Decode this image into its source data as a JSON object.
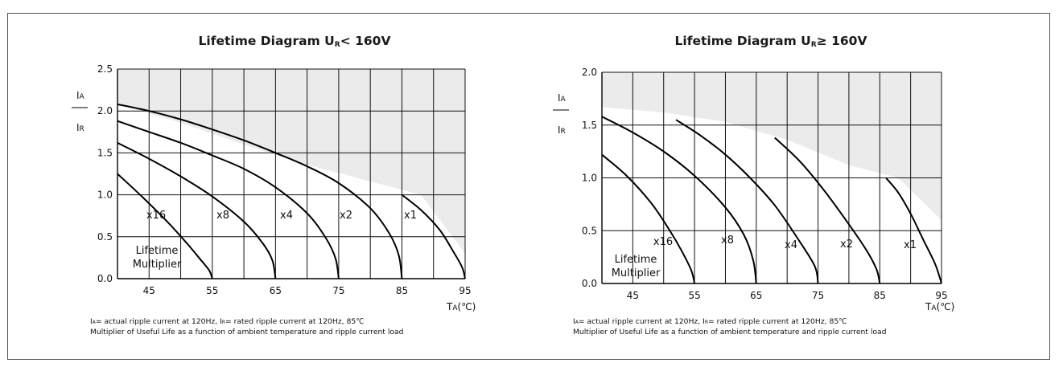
{
  "chart_data": [
    {
      "type": "line",
      "title": "Lifetime Diagram",
      "title_sub": "R",
      "title_tail": "< 160V",
      "title_var": "U",
      "ylabel_num": "I",
      "ylabel_num_sub": "A",
      "ylabel_den": "I",
      "ylabel_den_sub": "R",
      "xlabel": "T",
      "xlabel_sub": "A",
      "xlabel_unit": "(℃)",
      "xlim": [
        40,
        95
      ],
      "ylim": [
        0,
        2.5
      ],
      "yticks": [
        "0.0",
        "0.5",
        "1.0",
        "1.5",
        "2.0",
        "2.5"
      ],
      "xticks": [
        "45",
        "55",
        "65",
        "75",
        "85",
        "95"
      ],
      "grid": true,
      "series": [
        {
          "name": "x16",
          "x": [
            40,
            44,
            48,
            51,
            53,
            54.5,
            55
          ],
          "y": [
            1.25,
            0.97,
            0.67,
            0.42,
            0.24,
            0.1,
            0.0
          ]
        },
        {
          "name": "x8",
          "x": [
            40,
            45,
            50,
            55,
            60,
            63,
            64.5,
            65
          ],
          "y": [
            1.62,
            1.43,
            1.22,
            0.98,
            0.68,
            0.42,
            0.22,
            0.0
          ]
        },
        {
          "name": "x4",
          "x": [
            40,
            45,
            50,
            55,
            60,
            65,
            70,
            73,
            74.5,
            75
          ],
          "y": [
            1.88,
            1.75,
            1.62,
            1.47,
            1.31,
            1.09,
            0.78,
            0.48,
            0.24,
            0.0
          ]
        },
        {
          "name": "x2",
          "x": [
            40,
            45,
            50,
            55,
            60,
            65,
            70,
            75,
            80,
            83,
            84.5,
            85
          ],
          "y": [
            2.08,
            2.0,
            1.9,
            1.78,
            1.65,
            1.5,
            1.34,
            1.14,
            0.84,
            0.54,
            0.28,
            0.0
          ]
        },
        {
          "name": "x1",
          "x": [
            85,
            88,
            91,
            93,
            94.5,
            95
          ],
          "y": [
            1.0,
            0.82,
            0.58,
            0.34,
            0.14,
            0.0
          ]
        }
      ],
      "annotations": [
        "x16",
        "x8",
        "x4",
        "x2",
        "x1",
        "Lifetime",
        "Multiplier"
      ],
      "caption_line1_a": "= actual ripple current at 120Hz, ",
      "caption_line1_b": "= rated ripple current at 120Hz, 85℃",
      "caption_line2": "Multiplier of Useful Life as a function of ambient temperature and ripple current load"
    },
    {
      "type": "line",
      "title": "Lifetime Diagram",
      "title_var": "U",
      "title_sub": "R",
      "title_tail": "≥ 160V",
      "ylabel_num": "I",
      "ylabel_num_sub": "A",
      "ylabel_den": "I",
      "ylabel_den_sub": "R",
      "xlabel": "T",
      "xlabel_sub": "A",
      "xlabel_unit": "(℃)",
      "xlim": [
        40,
        95
      ],
      "ylim": [
        0,
        2.0
      ],
      "yticks": [
        "0.0",
        "0.5",
        "1.0",
        "1.5",
        "2.0"
      ],
      "xticks": [
        "45",
        "55",
        "65",
        "75",
        "85",
        "95"
      ],
      "grid": true,
      "series": [
        {
          "name": "x16",
          "x": [
            40,
            44,
            48,
            51,
            53,
            54.5,
            55
          ],
          "y": [
            1.22,
            1.02,
            0.76,
            0.5,
            0.3,
            0.12,
            0.0
          ]
        },
        {
          "name": "x8",
          "x": [
            40,
            45,
            50,
            55,
            60,
            63,
            64.5,
            65
          ],
          "y": [
            1.58,
            1.43,
            1.25,
            1.02,
            0.72,
            0.46,
            0.22,
            0.0
          ]
        },
        {
          "name": "x4",
          "x": [
            52,
            56,
            60,
            64,
            68,
            72,
            74.5,
            75
          ],
          "y": [
            1.55,
            1.4,
            1.22,
            1.0,
            0.74,
            0.4,
            0.16,
            0.0
          ]
        },
        {
          "name": "x2",
          "x": [
            68,
            72,
            76,
            80,
            83,
            84.5,
            85
          ],
          "y": [
            1.38,
            1.16,
            0.88,
            0.56,
            0.3,
            0.13,
            0.0
          ]
        },
        {
          "name": "x1",
          "x": [
            86,
            88,
            90,
            92,
            94,
            95
          ],
          "y": [
            1.0,
            0.86,
            0.66,
            0.42,
            0.18,
            0.0
          ]
        }
      ],
      "annotations": [
        "x16",
        "x8",
        "x4",
        "x2",
        "x1",
        "Lifetime",
        "Multiplier"
      ],
      "caption_line1_a": "= actual ripple current at 120Hz, ",
      "caption_line1_b": "= rated ripple current at 120Hz, 85℃",
      "caption_line2": "Multiplier of Useful Life as a function of ambient temperature and ripple current load"
    }
  ],
  "colors": {
    "shade": "#ebebeb",
    "grid": "#111111",
    "curve": "#000000"
  }
}
